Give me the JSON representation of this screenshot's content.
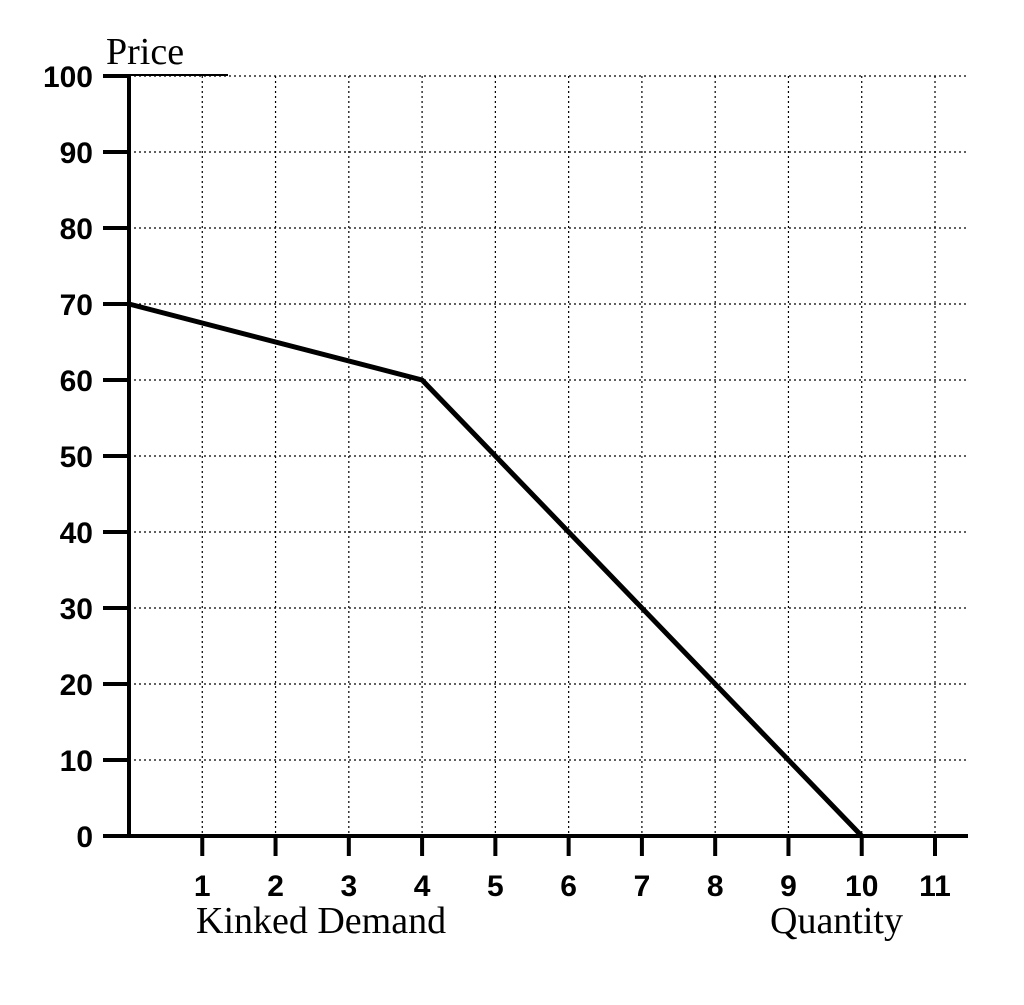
{
  "chart_data": {
    "type": "line",
    "title": "",
    "xlabel": "Quantity",
    "ylabel": "Price",
    "caption": "Kinked Demand",
    "xlim": [
      0,
      11
    ],
    "ylim": [
      0,
      100
    ],
    "grid": true,
    "x_ticks": [
      1,
      2,
      3,
      4,
      5,
      6,
      7,
      8,
      9,
      10,
      11
    ],
    "y_ticks": [
      0,
      10,
      20,
      30,
      40,
      50,
      60,
      70,
      80,
      90,
      100
    ],
    "series": [
      {
        "x": [
          0,
          4,
          10
        ],
        "y": [
          70,
          60,
          0
        ]
      }
    ]
  }
}
